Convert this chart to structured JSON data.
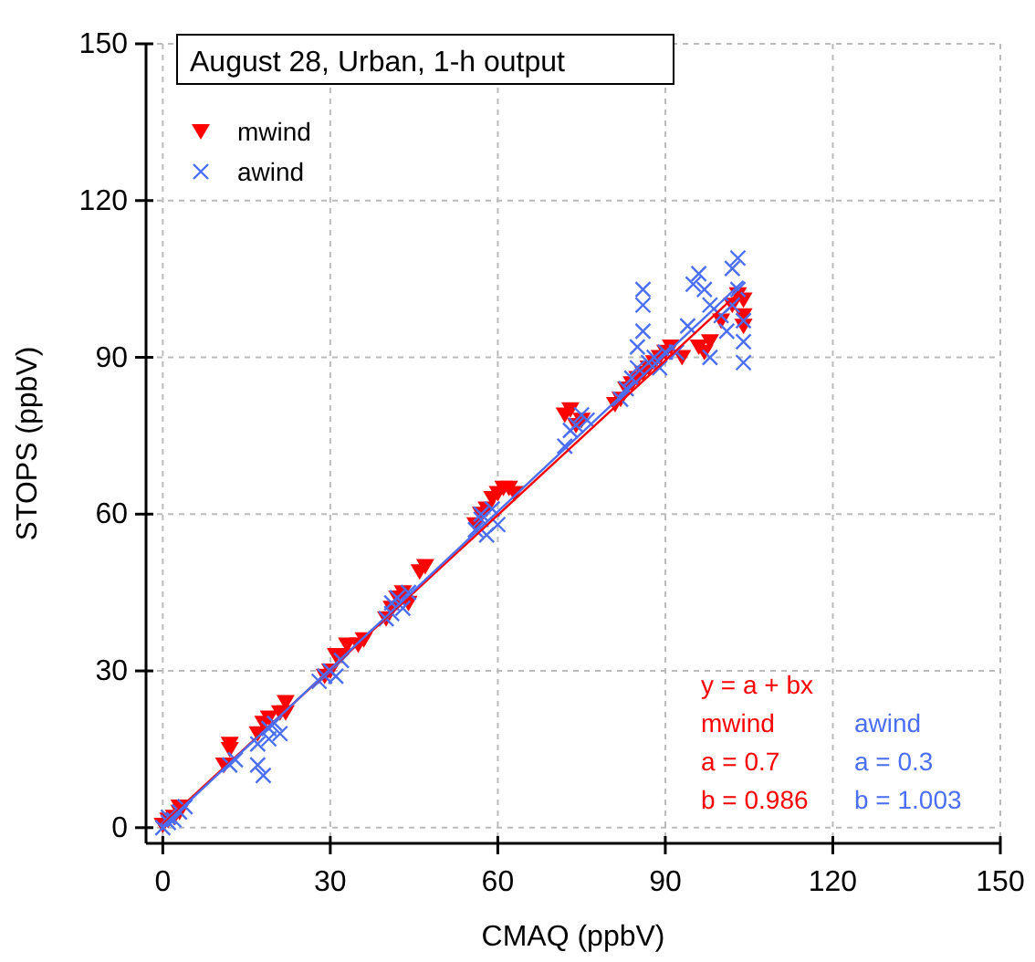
{
  "chart_data": {
    "type": "scatter",
    "title": "August 28, Urban, 1-h output",
    "xlabel": "CMAQ (ppbV)",
    "ylabel": "STOPS (ppbV)",
    "xlim": [
      -3,
      150
    ],
    "ylim": [
      -3,
      150
    ],
    "xticks": [
      0,
      30,
      60,
      90,
      120,
      150
    ],
    "yticks": [
      0,
      30,
      60,
      90,
      120,
      150
    ],
    "grid": true,
    "legend": "top left",
    "annotations": [
      "y = a + bx",
      "mwind",
      "a = 0.7",
      "b = 0.986",
      "awind",
      "a = 0.3",
      "b = 1.003"
    ],
    "series": [
      {
        "name": "mwind",
        "color": "#ff0000",
        "marker": "triangle",
        "x": [
          0,
          1,
          2,
          3,
          3,
          11,
          12,
          12,
          17,
          18,
          19,
          21,
          22,
          22,
          29,
          30,
          31,
          32,
          33,
          35,
          36,
          40,
          41,
          42,
          43,
          44,
          46,
          47,
          56,
          57,
          58,
          59,
          60,
          61,
          62,
          63,
          72,
          73,
          74,
          75,
          81,
          82,
          83,
          84,
          85,
          86,
          87,
          88,
          89,
          90,
          91,
          93,
          96,
          97,
          98,
          100,
          102,
          103,
          104,
          104,
          104
        ],
        "values": [
          0.5,
          1.5,
          2,
          3,
          4,
          12,
          15,
          16,
          18,
          20,
          21,
          22,
          22,
          24,
          29,
          30,
          33,
          33,
          35,
          35,
          36,
          40,
          42,
          44,
          45,
          43,
          49,
          50,
          58,
          60,
          61,
          63,
          64,
          65,
          65,
          64,
          79,
          80,
          77,
          78,
          81,
          82,
          84,
          85,
          86,
          87,
          88,
          89,
          90,
          91,
          92,
          90,
          92,
          91,
          93,
          97,
          100,
          102,
          101,
          98,
          96
        ]
      },
      {
        "name": "awind",
        "color": "#4a6ef5",
        "marker": "cross",
        "x": [
          0,
          1,
          1,
          2,
          3,
          4,
          12,
          13,
          17,
          17,
          18,
          19,
          19,
          20,
          21,
          28,
          29,
          30,
          31,
          32,
          40,
          41,
          41,
          42,
          43,
          44,
          56,
          57,
          57,
          58,
          59,
          60,
          72,
          73,
          74,
          75,
          76,
          82,
          83,
          84,
          85,
          85,
          86,
          86,
          86,
          87,
          88,
          89,
          90,
          92,
          94,
          95,
          96,
          97,
          98,
          98,
          100,
          101,
          102,
          102,
          103,
          103,
          104,
          104,
          104
        ],
        "values": [
          0,
          1,
          2,
          1.5,
          3,
          4,
          12,
          13,
          16,
          12,
          10,
          19,
          17,
          20,
          18,
          28,
          29,
          30,
          29,
          32,
          40,
          41,
          43,
          44,
          42,
          45,
          57,
          59,
          60,
          56,
          61,
          58,
          73,
          76,
          77,
          79,
          78,
          82,
          84,
          86,
          88,
          92,
          95,
          100,
          103,
          89,
          90,
          88,
          91,
          91,
          96,
          104,
          106,
          103,
          100,
          90,
          98,
          95,
          100,
          107,
          109,
          103,
          89,
          93,
          97
        ]
      },
      {
        "type": "line",
        "color": "#ff0000",
        "x": [
          0,
          104
        ],
        "values": [
          0.7,
          103.2
        ]
      },
      {
        "type": "line",
        "color": "#4a6ef5",
        "x": [
          0,
          104
        ],
        "values": [
          0.3,
          104.6
        ]
      }
    ]
  }
}
